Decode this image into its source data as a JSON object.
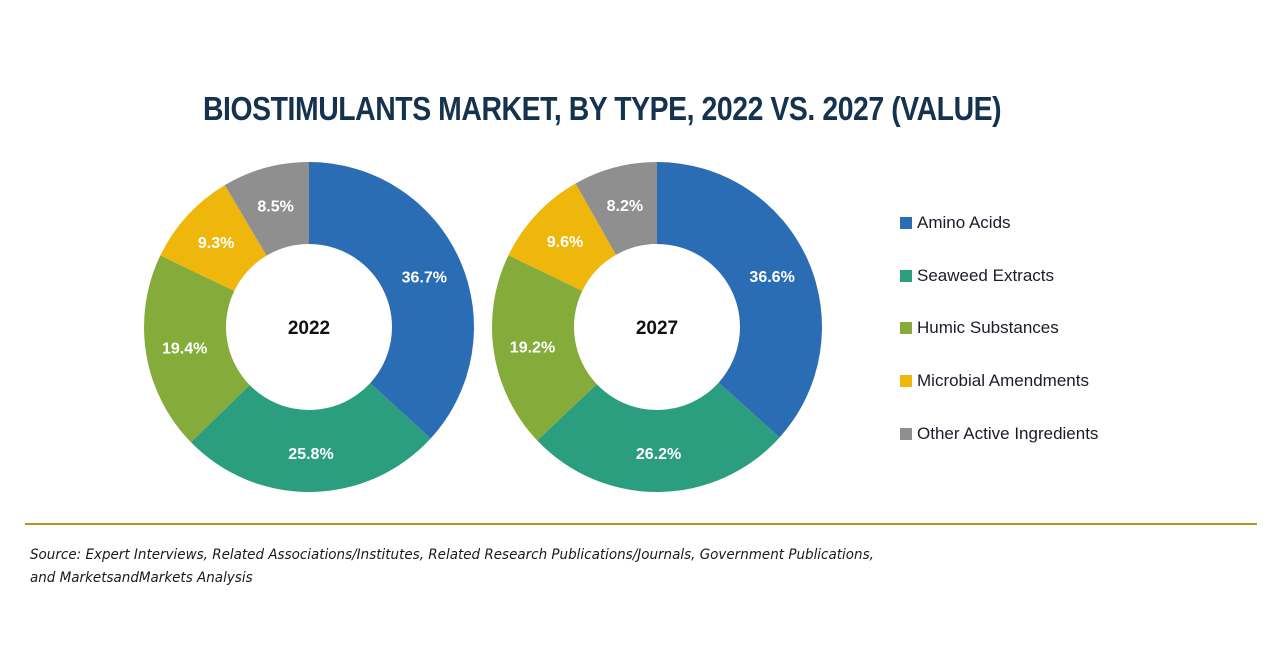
{
  "chart_data": {
    "type": "pie",
    "subtype": "donut",
    "title": "BIOSTIMULANTS MARKET, BY TYPE, 2022 VS. 2027 (VALUE)",
    "categories": [
      "Amino Acids",
      "Seaweed Extracts",
      "Humic Substances",
      "Microbial Amendments",
      "Other Active Ingredients"
    ],
    "colors": [
      "#2a6db5",
      "#2b9e80",
      "#85ab3a",
      "#efb70c",
      "#8f8f8f"
    ],
    "series": [
      {
        "name": "2022",
        "values": [
          36.7,
          25.8,
          19.4,
          9.3,
          8.5
        ],
        "labels": [
          "36.7%",
          "25.8%",
          "19.4%",
          "9.3%",
          "8.5%"
        ]
      },
      {
        "name": "2027",
        "values": [
          36.6,
          26.2,
          19.2,
          9.6,
          8.2
        ],
        "labels": [
          "36.6%",
          "26.2%",
          "19.2%",
          "9.6%",
          "8.2%"
        ]
      }
    ],
    "unit": "%",
    "start_angle": "12 o'clock",
    "direction": "clockwise",
    "legend_position": "right"
  },
  "legend": {
    "items": [
      {
        "label": "Amino Acids",
        "color": "#2a6db5"
      },
      {
        "label": "Seaweed Extracts",
        "color": "#2b9e80"
      },
      {
        "label": "Humic Substances",
        "color": "#85ab3a"
      },
      {
        "label": "Microbial Amendments",
        "color": "#efb70c"
      },
      {
        "label": "Other Active Ingredients",
        "color": "#8f8f8f"
      }
    ]
  },
  "footer": {
    "source_line1": "Source: Expert Interviews, Related Associations/Institutes, Related Research Publications/Journals, Government Publications,",
    "source_line2": "and MarketsandMarkets Analysis",
    "divider_color": "#b8951f"
  }
}
